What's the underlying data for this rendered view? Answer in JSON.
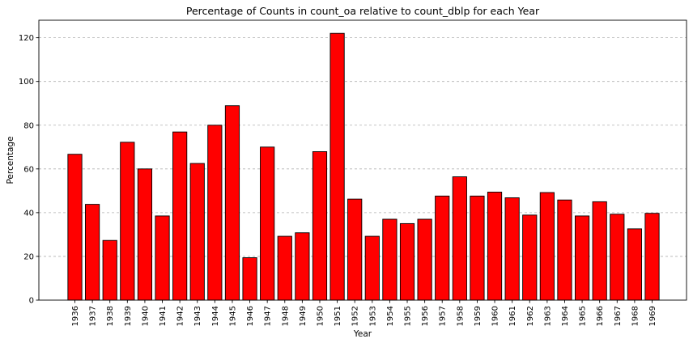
{
  "chart_data": {
    "type": "bar",
    "title": "Percentage of Counts in count_oa relative to count_dblp for each Year",
    "xlabel": "Year",
    "ylabel": "Percentage",
    "categories": [
      "1936",
      "1937",
      "1938",
      "1939",
      "1940",
      "1941",
      "1942",
      "1943",
      "1944",
      "1945",
      "1946",
      "1947",
      "1948",
      "1949",
      "1950",
      "1951",
      "1952",
      "1953",
      "1954",
      "1955",
      "1956",
      "1957",
      "1958",
      "1959",
      "1960",
      "1961",
      "1962",
      "1963",
      "1964",
      "1965",
      "1966",
      "1967",
      "1968",
      "1969"
    ],
    "values": [
      66.7,
      43.8,
      27.3,
      72.2,
      60.0,
      38.5,
      76.9,
      62.5,
      80.0,
      88.9,
      19.4,
      70.0,
      29.2,
      30.8,
      67.9,
      122.0,
      46.2,
      29.2,
      37.0,
      35.0,
      37.0,
      47.6,
      56.4,
      47.6,
      49.4,
      46.8,
      38.9,
      49.2,
      45.8,
      38.5,
      45.0,
      39.3,
      32.6,
      39.7
    ],
    "yticks": [
      0,
      20,
      40,
      60,
      80,
      100,
      120
    ],
    "ylim": [
      0,
      128
    ],
    "grid": "y-dashed",
    "colors": {
      "bar_fill": "#ff0000",
      "bar_edge": "#000000",
      "grid": "#b0b0b0"
    }
  }
}
